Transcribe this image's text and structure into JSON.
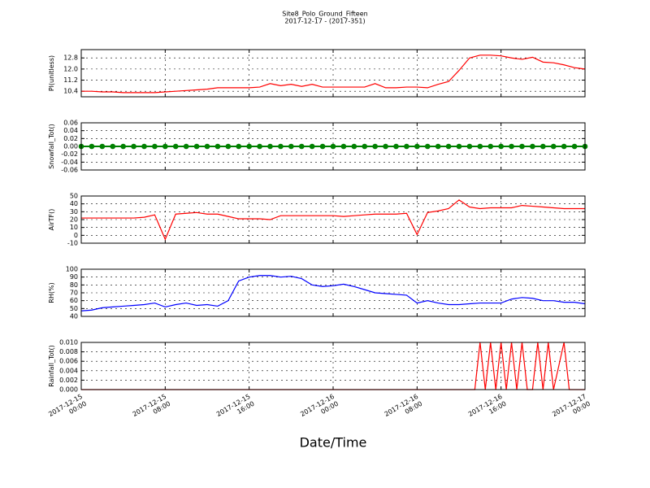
{
  "figure": {
    "title": "Site8_Polo_Ground_Fifteen",
    "subtitle": "2017-12-17 - (2017-351)",
    "xlabel": "Date/Time",
    "xlim": [
      "2017-12-15 00:00",
      "2017-12-17 00:00"
    ],
    "xticks": [
      "2017-12-15 00:00",
      "2017-12-15 08:00",
      "2017-12-15 16:00",
      "2017-12-16 00:00",
      "2017-12-16 08:00",
      "2017-12-16 16:00",
      "2017-12-17 00:00"
    ]
  },
  "chart_data": [
    {
      "type": "line",
      "ylabel": "Pl(unitless)",
      "color": "#ff0000",
      "grid": true,
      "ylim": [
        10.0,
        13.4
      ],
      "yticks": [
        10.4,
        11.2,
        {
          "value": 12,
          "label": "12.0"
        },
        12.8
      ],
      "x": [
        "2017-12-15 00:00",
        "2017-12-15 01:00",
        "2017-12-15 02:00",
        "2017-12-15 03:00",
        "2017-12-15 04:00",
        "2017-12-15 05:00",
        "2017-12-15 06:00",
        "2017-12-15 07:00",
        "2017-12-15 08:00",
        "2017-12-15 09:00",
        "2017-12-15 10:00",
        "2017-12-15 11:00",
        "2017-12-15 12:00",
        "2017-12-15 13:00",
        "2017-12-15 14:00",
        "2017-12-15 15:00",
        "2017-12-15 16:00",
        "2017-12-15 17:00",
        "2017-12-15 18:00",
        "2017-12-15 19:00",
        "2017-12-15 20:00",
        "2017-12-15 21:00",
        "2017-12-15 22:00",
        "2017-12-15 23:00",
        "2017-12-16 00:00",
        "2017-12-16 01:00",
        "2017-12-16 02:00",
        "2017-12-16 03:00",
        "2017-12-16 04:00",
        "2017-12-16 05:00",
        "2017-12-16 06:00",
        "2017-12-16 07:00",
        "2017-12-16 08:00",
        "2017-12-16 09:00",
        "2017-12-16 10:00",
        "2017-12-16 11:00",
        "2017-12-16 12:00",
        "2017-12-16 13:00",
        "2017-12-16 14:00",
        "2017-12-16 15:00",
        "2017-12-16 16:00",
        "2017-12-16 17:00",
        "2017-12-16 18:00",
        "2017-12-16 19:00",
        "2017-12-16 20:00",
        "2017-12-16 21:00",
        "2017-12-16 22:00",
        "2017-12-16 23:00",
        "2017-12-17 00:00"
      ],
      "values": [
        10.4,
        10.4,
        10.35,
        10.35,
        10.3,
        10.3,
        10.3,
        10.3,
        10.35,
        10.4,
        10.45,
        10.5,
        10.55,
        10.65,
        10.65,
        10.65,
        10.65,
        10.7,
        10.95,
        10.8,
        10.9,
        10.75,
        10.9,
        10.7,
        10.7,
        10.7,
        10.7,
        10.7,
        10.95,
        10.65,
        10.65,
        10.7,
        10.7,
        10.65,
        10.9,
        11.1,
        11.9,
        12.8,
        13.0,
        13.0,
        12.95,
        12.8,
        12.7,
        12.85,
        12.5,
        12.45,
        12.3,
        12.1,
        12.0
      ]
    },
    {
      "type": "line",
      "ylabel": "Snowfall_Tot()",
      "color": "#008000",
      "marker": "o",
      "grid": true,
      "ylim": [
        -0.06,
        0.06
      ],
      "yticks": [
        -0.06,
        -0.04,
        -0.02,
        {
          "value": 0,
          "label": "0.00"
        },
        0.02,
        0.04,
        0.06
      ],
      "x": [
        "2017-12-15 00:00",
        "2017-12-15 01:00",
        "2017-12-15 02:00",
        "2017-12-15 03:00",
        "2017-12-15 04:00",
        "2017-12-15 05:00",
        "2017-12-15 06:00",
        "2017-12-15 07:00",
        "2017-12-15 08:00",
        "2017-12-15 09:00",
        "2017-12-15 10:00",
        "2017-12-15 11:00",
        "2017-12-15 12:00",
        "2017-12-15 13:00",
        "2017-12-15 14:00",
        "2017-12-15 15:00",
        "2017-12-15 16:00",
        "2017-12-15 17:00",
        "2017-12-15 18:00",
        "2017-12-15 19:00",
        "2017-12-15 20:00",
        "2017-12-15 21:00",
        "2017-12-15 22:00",
        "2017-12-15 23:00",
        "2017-12-16 00:00",
        "2017-12-16 01:00",
        "2017-12-16 02:00",
        "2017-12-16 03:00",
        "2017-12-16 04:00",
        "2017-12-16 05:00",
        "2017-12-16 06:00",
        "2017-12-16 07:00",
        "2017-12-16 08:00",
        "2017-12-16 09:00",
        "2017-12-16 10:00",
        "2017-12-16 11:00",
        "2017-12-16 12:00",
        "2017-12-16 13:00",
        "2017-12-16 14:00",
        "2017-12-16 15:00",
        "2017-12-16 16:00",
        "2017-12-16 17:00",
        "2017-12-16 18:00",
        "2017-12-16 19:00",
        "2017-12-16 20:00",
        "2017-12-16 21:00",
        "2017-12-16 22:00",
        "2017-12-16 23:00",
        "2017-12-17 00:00"
      ],
      "values": [
        0,
        0,
        0,
        0,
        0,
        0,
        0,
        0,
        0,
        0,
        0,
        0,
        0,
        0,
        0,
        0,
        0,
        0,
        0,
        0,
        0,
        0,
        0,
        0,
        0,
        0,
        0,
        0,
        0,
        0,
        0,
        0,
        0,
        0,
        0,
        0,
        0,
        0,
        0,
        0,
        0,
        0,
        0,
        0,
        0,
        0,
        0,
        0,
        0
      ]
    },
    {
      "type": "line",
      "ylabel": "AirTF()",
      "color": "#ff0000",
      "grid": true,
      "ylim": [
        -10,
        50
      ],
      "yticks": [
        -10,
        0,
        10,
        20,
        30,
        40,
        50
      ],
      "x": [
        "2017-12-15 00:00",
        "2017-12-15 01:00",
        "2017-12-15 02:00",
        "2017-12-15 03:00",
        "2017-12-15 04:00",
        "2017-12-15 05:00",
        "2017-12-15 06:00",
        "2017-12-15 07:00",
        "2017-12-15 08:00",
        "2017-12-15 09:00",
        "2017-12-15 10:00",
        "2017-12-15 11:00",
        "2017-12-15 12:00",
        "2017-12-15 13:00",
        "2017-12-15 14:00",
        "2017-12-15 15:00",
        "2017-12-15 16:00",
        "2017-12-15 17:00",
        "2017-12-15 18:00",
        "2017-12-15 19:00",
        "2017-12-15 20:00",
        "2017-12-15 21:00",
        "2017-12-15 22:00",
        "2017-12-15 23:00",
        "2017-12-16 00:00",
        "2017-12-16 01:00",
        "2017-12-16 02:00",
        "2017-12-16 03:00",
        "2017-12-16 04:00",
        "2017-12-16 05:00",
        "2017-12-16 06:00",
        "2017-12-16 07:00",
        "2017-12-16 08:00",
        "2017-12-16 09:00",
        "2017-12-16 10:00",
        "2017-12-16 11:00",
        "2017-12-16 12:00",
        "2017-12-16 13:00",
        "2017-12-16 14:00",
        "2017-12-16 15:00",
        "2017-12-16 16:00",
        "2017-12-16 17:00",
        "2017-12-16 18:00",
        "2017-12-16 19:00",
        "2017-12-16 20:00",
        "2017-12-16 21:00",
        "2017-12-16 22:00",
        "2017-12-16 23:00",
        "2017-12-17 00:00"
      ],
      "values": [
        22,
        22,
        22,
        22,
        22,
        22,
        23,
        26,
        -5,
        27,
        28,
        29,
        27,
        27,
        24,
        21,
        21,
        21,
        20,
        25,
        25,
        25,
        25,
        25,
        25,
        24,
        25,
        26,
        27,
        27,
        27,
        28,
        1,
        29,
        31,
        34,
        45,
        36,
        34,
        35,
        35,
        35,
        38,
        37,
        36,
        35,
        34,
        34,
        34
      ]
    },
    {
      "type": "line",
      "ylabel": "RH(%)",
      "color": "#0000ff",
      "grid": true,
      "ylim": [
        40,
        100
      ],
      "yticks": [
        40,
        50,
        60,
        70,
        80,
        90,
        100
      ],
      "x": [
        "2017-12-15 00:00",
        "2017-12-15 01:00",
        "2017-12-15 02:00",
        "2017-12-15 03:00",
        "2017-12-15 04:00",
        "2017-12-15 05:00",
        "2017-12-15 06:00",
        "2017-12-15 07:00",
        "2017-12-15 08:00",
        "2017-12-15 09:00",
        "2017-12-15 10:00",
        "2017-12-15 11:00",
        "2017-12-15 12:00",
        "2017-12-15 13:00",
        "2017-12-15 14:00",
        "2017-12-15 15:00",
        "2017-12-15 16:00",
        "2017-12-15 17:00",
        "2017-12-15 18:00",
        "2017-12-15 19:00",
        "2017-12-15 20:00",
        "2017-12-15 21:00",
        "2017-12-15 22:00",
        "2017-12-15 23:00",
        "2017-12-16 00:00",
        "2017-12-16 01:00",
        "2017-12-16 02:00",
        "2017-12-16 03:00",
        "2017-12-16 04:00",
        "2017-12-16 05:00",
        "2017-12-16 06:00",
        "2017-12-16 07:00",
        "2017-12-16 08:00",
        "2017-12-16 09:00",
        "2017-12-16 10:00",
        "2017-12-16 11:00",
        "2017-12-16 12:00",
        "2017-12-16 13:00",
        "2017-12-16 14:00",
        "2017-12-16 15:00",
        "2017-12-16 16:00",
        "2017-12-16 17:00",
        "2017-12-16 18:00",
        "2017-12-16 19:00",
        "2017-12-16 20:00",
        "2017-12-16 21:00",
        "2017-12-16 22:00",
        "2017-12-16 23:00",
        "2017-12-17 00:00"
      ],
      "values": [
        47,
        48,
        51,
        52,
        53,
        54,
        55,
        57,
        52,
        55,
        57,
        54,
        55,
        53,
        60,
        85,
        90,
        92,
        92,
        90,
        91,
        88,
        80,
        78,
        79,
        81,
        78,
        74,
        70,
        69,
        68,
        67,
        57,
        60,
        57,
        55,
        55,
        56,
        57,
        57,
        57,
        62,
        64,
        63,
        60,
        60,
        58,
        58,
        56
      ]
    },
    {
      "type": "line",
      "ylabel": "Rainfall_Tot()",
      "color": "#ff0000",
      "grid": true,
      "ylim": [
        0,
        0.01
      ],
      "yticks": [
        {
          "value": 0,
          "label": "0.000"
        },
        0.002,
        0.004,
        0.006,
        0.008,
        {
          "value": 0.01,
          "label": "0.010"
        }
      ],
      "x": [
        "2017-12-15 00:00",
        "2017-12-16 13:30",
        "2017-12-16 14:00",
        "2017-12-16 14:30",
        "2017-12-16 15:00",
        "2017-12-16 15:30",
        "2017-12-16 16:00",
        "2017-12-16 16:30",
        "2017-12-16 17:00",
        "2017-12-16 17:30",
        "2017-12-16 18:00",
        "2017-12-16 18:30",
        "2017-12-16 19:00",
        "2017-12-16 19:30",
        "2017-12-16 20:00",
        "2017-12-16 20:30",
        "2017-12-16 21:00",
        "2017-12-16 22:00",
        "2017-12-16 22:30",
        "2017-12-17 00:00"
      ],
      "values": [
        0,
        0,
        0.01,
        0,
        0.01,
        0,
        0.01,
        0,
        0.01,
        0,
        0.01,
        0,
        0,
        0.01,
        0,
        0.01,
        0,
        0.01,
        0,
        0
      ]
    }
  ]
}
